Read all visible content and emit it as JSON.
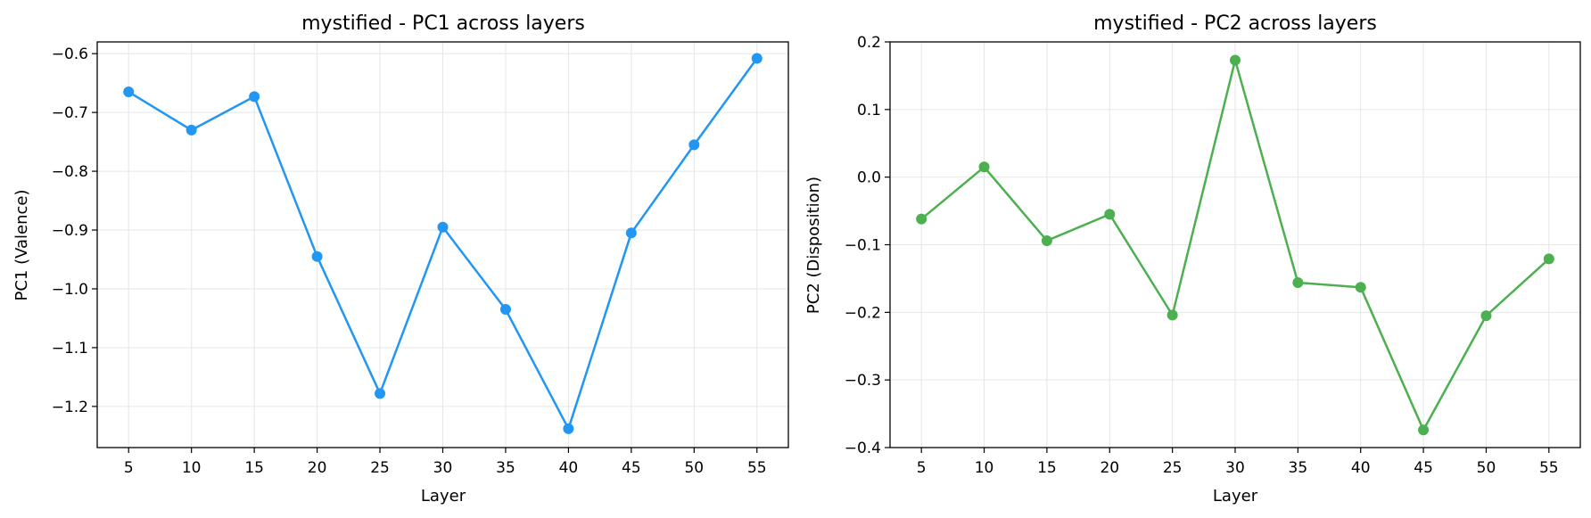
{
  "chart_data": [
    {
      "type": "line",
      "title": "mystified - PC1 across layers",
      "xlabel": "Layer",
      "ylabel": "PC1 (Valence)",
      "x": [
        5,
        10,
        15,
        20,
        25,
        30,
        35,
        40,
        45,
        50,
        55
      ],
      "values": [
        -0.665,
        -0.73,
        -0.673,
        -0.945,
        -1.178,
        -0.895,
        -1.035,
        -1.238,
        -0.905,
        -0.755,
        -0.608
      ],
      "xlim": [
        2.5,
        57.5
      ],
      "ylim": [
        -1.27,
        -0.58
      ],
      "xticks": [
        5,
        10,
        15,
        20,
        25,
        30,
        35,
        40,
        45,
        50,
        55
      ],
      "xtick_labels": [
        "5",
        "10",
        "15",
        "20",
        "25",
        "30",
        "35",
        "40",
        "45",
        "50",
        "55"
      ],
      "yticks": [
        -0.6,
        -0.7,
        -0.8,
        -0.9,
        -1.0,
        -1.1,
        -1.2
      ],
      "ytick_labels": [
        "−0.6",
        "−0.7",
        "−0.8",
        "−0.9",
        "−1.0",
        "−1.1",
        "−1.2"
      ],
      "color": "#2196f3",
      "grid": true
    },
    {
      "type": "line",
      "title": "mystified - PC2 across layers",
      "xlabel": "Layer",
      "ylabel": "PC2 (Disposition)",
      "x": [
        5,
        10,
        15,
        20,
        25,
        30,
        35,
        40,
        45,
        50,
        55
      ],
      "values": [
        -0.062,
        0.015,
        -0.094,
        -0.055,
        -0.204,
        0.173,
        -0.156,
        -0.163,
        -0.374,
        -0.205,
        -0.121
      ],
      "xlim": [
        2.5,
        57.5
      ],
      "ylim": [
        -0.4,
        0.2
      ],
      "xticks": [
        5,
        10,
        15,
        20,
        25,
        30,
        35,
        40,
        45,
        50,
        55
      ],
      "xtick_labels": [
        "5",
        "10",
        "15",
        "20",
        "25",
        "30",
        "35",
        "40",
        "45",
        "50",
        "55"
      ],
      "yticks": [
        0.2,
        0.1,
        0.0,
        -0.1,
        -0.2,
        -0.3,
        -0.4
      ],
      "ytick_labels": [
        "0.2",
        "0.1",
        "0.0",
        "−0.1",
        "−0.2",
        "−0.3",
        "−0.4"
      ],
      "color": "#4caf50",
      "grid": true
    }
  ]
}
